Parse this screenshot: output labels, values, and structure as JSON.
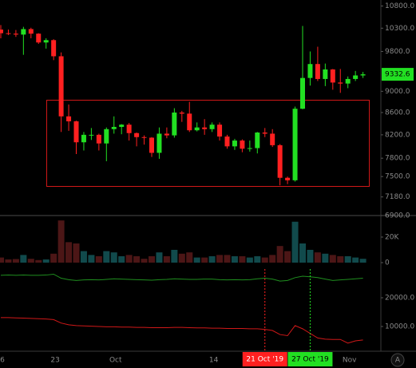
{
  "chart_data": [
    {
      "type": "candlestick",
      "categories": [
        "6",
        null,
        null,
        null,
        null,
        null,
        null,
        "23",
        null,
        null,
        null,
        null,
        null,
        null,
        null,
        "Oct",
        null,
        null,
        null,
        null,
        null,
        null,
        null,
        null,
        null,
        null,
        null,
        null,
        "14",
        null,
        null,
        null,
        null,
        null,
        null,
        null,
        null,
        null,
        null,
        null,
        null,
        null,
        null,
        null,
        null,
        null,
        "Nov",
        null,
        null
      ],
      "open": [
        10270,
        10190,
        10180,
        10160,
        10280,
        10180,
        9990,
        10040,
        9700,
        8530,
        8440,
        8070,
        8200,
        8200,
        8050,
        8300,
        8340,
        8380,
        8230,
        8160,
        8150,
        7890,
        8220,
        8190,
        8600,
        8580,
        8280,
        8330,
        8300,
        8380,
        8170,
        8000,
        8100,
        7960,
        7970,
        8240,
        8220,
        8020,
        7480,
        7440,
        8670,
        9260,
        9540,
        9240,
        9430,
        9170,
        9150,
        9240,
        9310
      ],
      "high": [
        10370,
        10270,
        10260,
        10330,
        10310,
        10190,
        10080,
        10060,
        9780,
        8750,
        8450,
        8250,
        8320,
        8220,
        8330,
        8530,
        8390,
        8410,
        8240,
        8190,
        8160,
        8330,
        8330,
        8680,
        8630,
        8800,
        8420,
        8480,
        8420,
        8420,
        8200,
        8130,
        8120,
        8100,
        8250,
        8320,
        8300,
        8040,
        7500,
        8710,
        10350,
        9800,
        9900,
        9550,
        9440,
        9440,
        9290,
        9400,
        9380
      ],
      "low": [
        10080,
        10150,
        10110,
        9730,
        10080,
        9960,
        9860,
        9620,
        8250,
        8270,
        7870,
        7930,
        8110,
        7930,
        7750,
        8220,
        8210,
        8100,
        8000,
        8030,
        7820,
        7790,
        8140,
        8150,
        8430,
        8250,
        8260,
        8200,
        8250,
        8100,
        7960,
        7940,
        7900,
        7910,
        7880,
        8160,
        7990,
        7360,
        7380,
        7420,
        8660,
        9110,
        9200,
        9100,
        9030,
        8970,
        9060,
        9200,
        9260
      ],
      "close": [
        10190,
        10180,
        10160,
        10280,
        10180,
        9990,
        10040,
        9700,
        8530,
        8440,
        8070,
        8200,
        8200,
        8050,
        8300,
        8340,
        8380,
        8230,
        8160,
        8150,
        7890,
        8220,
        8190,
        8600,
        8580,
        8280,
        8330,
        8300,
        8380,
        8170,
        8000,
        8100,
        7960,
        7970,
        8240,
        8220,
        8020,
        7480,
        7440,
        8670,
        9260,
        9540,
        9240,
        9430,
        9170,
        9150,
        9240,
        9310,
        9332.6
      ],
      "up_color": "#22e022",
      "down_color": "#ff2020",
      "log_scale": true,
      "ylim": [
        6900,
        10940
      ],
      "yticks": [
        {
          "value": 10800,
          "label": "10800.0"
        },
        {
          "value": 10300,
          "label": "10300.0"
        },
        {
          "value": 9800,
          "label": "9800.0"
        },
        {
          "value": 9000,
          "label": "9000.0"
        },
        {
          "value": 8600,
          "label": "8600.0"
        },
        {
          "value": 8200,
          "label": "8200.0"
        },
        {
          "value": 7800,
          "label": "7800.0"
        },
        {
          "value": 7500,
          "label": "7500.0"
        },
        {
          "value": 7180,
          "label": "7180.0"
        },
        {
          "value": 6900,
          "label": "6900.0"
        }
      ],
      "current_price": 9332.6,
      "current_price_color": "#22e022"
    },
    {
      "type": "bar",
      "values": [
        4000,
        2500,
        2800,
        6000,
        3000,
        2000,
        2500,
        7000,
        33000,
        16000,
        15000,
        9000,
        6000,
        5000,
        9000,
        8000,
        5000,
        6000,
        5000,
        3000,
        5000,
        8000,
        5000,
        10000,
        7000,
        8000,
        4000,
        4000,
        5000,
        6000,
        6000,
        5000,
        5000,
        4000,
        5000,
        4000,
        6000,
        13000,
        9000,
        32000,
        15000,
        10000,
        8000,
        7000,
        6000,
        5000,
        5000,
        4000,
        3000
      ],
      "up_color": "#114a4c",
      "down_color": "#4c1616",
      "ylim": [
        0,
        35600
      ],
      "yticks": [
        {
          "value": 20000,
          "label": "20K"
        },
        0
      ]
    },
    {
      "type": "line",
      "series": [
        {
          "color": "#1f8f1f",
          "values": [
            27800,
            27900,
            27800,
            27900,
            27800,
            27800,
            27900,
            28200,
            26800,
            26300,
            26000,
            26200,
            26300,
            26200,
            26400,
            26600,
            26500,
            26400,
            26300,
            26200,
            26100,
            26300,
            26400,
            26600,
            26500,
            26400,
            26400,
            26500,
            26500,
            26300,
            26200,
            26300,
            26200,
            26300,
            26600,
            26800,
            26500,
            25800,
            26000,
            27000,
            27500,
            27300,
            27000,
            26500,
            26000,
            26200,
            26400,
            26600,
            26800
          ]
        },
        {
          "color": "#d01818",
          "values": [
            13100,
            13100,
            13000,
            12900,
            12800,
            12700,
            12600,
            12400,
            11200,
            10600,
            10300,
            10200,
            10100,
            10000,
            9900,
            9900,
            9800,
            9800,
            9700,
            9700,
            9600,
            9600,
            9600,
            9700,
            9700,
            9600,
            9500,
            9500,
            9400,
            9400,
            9300,
            9300,
            9300,
            9200,
            9200,
            9000,
            8600,
            7200,
            6800,
            10300,
            9200,
            7600,
            6000,
            5600,
            5500,
            5500,
            4200,
            5000,
            5300
          ]
        }
      ],
      "ylim": [
        0,
        30000
      ],
      "yticks": [
        {
          "value": 20000,
          "label": "20000.0"
        },
        {
          "value": 10000,
          "label": "10000.0"
        }
      ]
    }
  ],
  "markers": [
    {
      "label": "21 Oct '19",
      "color": "#ff2020",
      "text_color": "#ffffff"
    },
    {
      "label": "27 Oct '19",
      "color": "#22e022",
      "text_color": "#000000"
    }
  ],
  "scale_button": "A"
}
